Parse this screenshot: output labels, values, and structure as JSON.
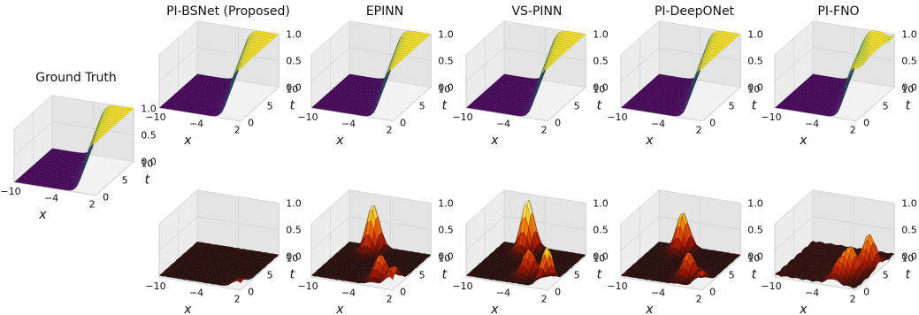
{
  "chart_data": [
    {
      "type": "surface",
      "panel": "ground_truth",
      "title": "Ground Truth",
      "colormap": "viridis",
      "xlabel": "x",
      "ylabel": "t",
      "x_ticks": [
        "−10",
        "−4",
        "2"
      ],
      "t_ticks": [
        "0",
        "5",
        "10"
      ],
      "z_ticks": [
        "0.0",
        "0.5",
        "1.0"
      ],
      "xlim": [
        -10,
        2
      ],
      "tlim": [
        0,
        10
      ],
      "zlim": [
        0,
        1
      ],
      "surface": "sigmoid front rising from 0 to 1, moving toward negative x as t increases",
      "max_value": 1.0
    },
    {
      "type": "surface",
      "panel": "prediction",
      "title": "PI-BSNet (Proposed)",
      "colormap": "viridis",
      "xlabel": "x",
      "ylabel": "t",
      "x_ticks": [
        "−10",
        "−4",
        "2"
      ],
      "t_ticks": [
        "0",
        "5",
        "10"
      ],
      "z_ticks": [
        "0.0",
        "0.5",
        "1.0"
      ],
      "xlim": [
        -10,
        2
      ],
      "tlim": [
        0,
        10
      ],
      "zlim": [
        0,
        1
      ],
      "max_value": 1.0
    },
    {
      "type": "surface",
      "panel": "prediction",
      "title": "EPINN",
      "colormap": "viridis",
      "xlabel": "x",
      "ylabel": "t",
      "x_ticks": [
        "−10",
        "−4",
        "2"
      ],
      "t_ticks": [
        "0",
        "5",
        "10"
      ],
      "z_ticks": [
        "0.0",
        "0.5",
        "1.0"
      ],
      "xlim": [
        -10,
        2
      ],
      "tlim": [
        0,
        10
      ],
      "zlim": [
        0,
        1
      ],
      "max_value": 1.0
    },
    {
      "type": "surface",
      "panel": "prediction",
      "title": "VS-PINN",
      "colormap": "viridis",
      "xlabel": "x",
      "ylabel": "t",
      "x_ticks": [
        "−10",
        "−4",
        "2"
      ],
      "t_ticks": [
        "0",
        "5",
        "10"
      ],
      "z_ticks": [
        "0.0",
        "0.5",
        "1.0"
      ],
      "xlim": [
        -10,
        2
      ],
      "tlim": [
        0,
        10
      ],
      "zlim": [
        0,
        1
      ],
      "max_value": 1.0
    },
    {
      "type": "surface",
      "panel": "prediction",
      "title": "PI-DeepONet",
      "colormap": "viridis",
      "xlabel": "x",
      "ylabel": "t",
      "x_ticks": [
        "−10",
        "−4",
        "2"
      ],
      "t_ticks": [
        "0",
        "5",
        "10"
      ],
      "z_ticks": [
        "0.0",
        "0.5",
        "1.0"
      ],
      "xlim": [
        -10,
        2
      ],
      "tlim": [
        0,
        10
      ],
      "zlim": [
        0,
        1
      ],
      "max_value": 1.0
    },
    {
      "type": "surface",
      "panel": "prediction",
      "title": "PI-FNO",
      "colormap": "viridis",
      "xlabel": "x",
      "ylabel": "t",
      "x_ticks": [
        "−10",
        "−4",
        "2"
      ],
      "t_ticks": [
        "0",
        "5",
        "10"
      ],
      "z_ticks": [
        "0.0",
        "0.5",
        "1.0"
      ],
      "xlim": [
        -10,
        2
      ],
      "tlim": [
        0,
        10
      ],
      "zlim": [
        0,
        1
      ],
      "max_value": 1.0,
      "note_visual": "wavy plateau"
    },
    {
      "type": "surface",
      "panel": "error",
      "colormap": "hot",
      "xlabel": "x",
      "ylabel": "t",
      "x_ticks": [
        "−10",
        "−4",
        "2"
      ],
      "t_ticks": [
        "0",
        "5",
        "10"
      ],
      "z_ticks": [
        "0.0",
        "0.5",
        "1.0"
      ],
      "xlim": [
        -10,
        2
      ],
      "tlim": [
        0,
        10
      ],
      "zlim": [
        0,
        1
      ],
      "peaks": [
        {
          "x": 1.5,
          "t": 0.5,
          "z": 0.15
        }
      ]
    },
    {
      "type": "surface",
      "panel": "error",
      "colormap": "hot",
      "xlabel": "x",
      "ylabel": "t",
      "x_ticks": [
        "−10",
        "−4",
        "2"
      ],
      "t_ticks": [
        "0",
        "5",
        "10"
      ],
      "z_ticks": [
        "0.0",
        "0.5",
        "1.0"
      ],
      "xlim": [
        -10,
        2
      ],
      "tlim": [
        0,
        10
      ],
      "zlim": [
        0,
        1
      ],
      "peaks": [
        {
          "x": -6,
          "t": 9,
          "z": 0.85
        },
        {
          "x": -1,
          "t": 2,
          "z": 0.45
        },
        {
          "x": 1.5,
          "t": 1,
          "z": 0.35
        }
      ]
    },
    {
      "type": "surface",
      "panel": "error",
      "colormap": "hot",
      "xlabel": "x",
      "ylabel": "t",
      "x_ticks": [
        "−10",
        "−4",
        "2"
      ],
      "t_ticks": [
        "0",
        "5",
        "10"
      ],
      "z_ticks": [
        "0.0",
        "0.5",
        "1.0"
      ],
      "xlim": [
        -10,
        2
      ],
      "tlim": [
        0,
        10
      ],
      "zlim": [
        0,
        1
      ],
      "peaks": [
        {
          "x": -6,
          "t": 9,
          "z": 0.95
        },
        {
          "x": -2.5,
          "t": 3,
          "z": 0.45
        },
        {
          "x": 1.6,
          "t": 0.5,
          "z": 0.75
        }
      ]
    },
    {
      "type": "surface",
      "panel": "error",
      "colormap": "hot",
      "xlabel": "x",
      "ylabel": "t",
      "x_ticks": [
        "−10",
        "−4",
        "2"
      ],
      "t_ticks": [
        "0",
        "5",
        "10"
      ],
      "z_ticks": [
        "0.0",
        "0.5",
        "1.0"
      ],
      "xlim": [
        -10,
        2
      ],
      "tlim": [
        0,
        10
      ],
      "zlim": [
        0,
        1
      ],
      "peaks": [
        {
          "x": -6,
          "t": 9,
          "z": 0.7
        },
        {
          "x": -1.5,
          "t": 2.5,
          "z": 0.45
        },
        {
          "x": 1.6,
          "t": 0.5,
          "z": 0.3
        }
      ]
    },
    {
      "type": "surface",
      "panel": "error",
      "colormap": "hot",
      "xlabel": "x",
      "ylabel": "t",
      "x_ticks": [
        "−10",
        "−4",
        "2"
      ],
      "t_ticks": [
        "0",
        "5",
        "10"
      ],
      "z_ticks": [
        "0.0",
        "0.5",
        "1.0"
      ],
      "xlim": [
        -10,
        2
      ],
      "tlim": [
        0,
        10
      ],
      "zlim": [
        0,
        1
      ],
      "peaks": [
        {
          "x": 0.5,
          "t": 6,
          "z": 0.6
        },
        {
          "x": -0.5,
          "t": 3,
          "z": 0.5
        },
        {
          "x": -1.5,
          "t": 1.5,
          "z": 0.3
        }
      ],
      "note_visual": "wavy low-level ripples"
    }
  ]
}
